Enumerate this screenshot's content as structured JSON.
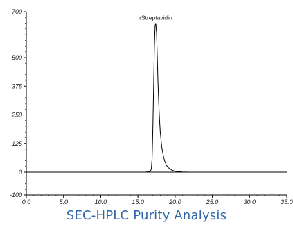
{
  "caption": "SEC-HPLC Purity Analysis",
  "colors": {
    "trace": "#000000",
    "caption": "#2e67a9"
  },
  "chart_data": {
    "type": "line",
    "title": "",
    "xlabel": "",
    "ylabel": "",
    "xlim": [
      0,
      35
    ],
    "ylim": [
      -100,
      700
    ],
    "x_ticks": [
      0,
      5,
      10,
      15,
      20,
      25,
      30,
      35
    ],
    "x_tick_labels": [
      "0.0",
      "5.0",
      "10.0",
      "15.0",
      "20.0",
      "25.0",
      "30.0",
      "35.0"
    ],
    "y_ticks": [
      -100,
      0,
      125,
      250,
      375,
      500,
      700
    ],
    "y_tick_labels": [
      "-100",
      "0",
      "125",
      "250",
      "375",
      "500",
      "700"
    ],
    "grid": false,
    "series": [
      {
        "x": [
          0,
          4,
          8,
          12,
          16,
          16.5,
          16.7,
          16.8,
          16.9,
          17.0,
          17.1,
          17.2,
          17.3,
          17.4,
          17.5,
          17.6,
          17.7,
          17.8,
          17.9,
          18.0,
          18.2,
          18.4,
          18.6,
          18.8,
          19.0,
          19.3,
          19.6,
          20.0,
          20.5,
          21.0,
          22.0,
          25,
          30,
          35
        ],
        "y": [
          0,
          0,
          0,
          0,
          0,
          2,
          6,
          15,
          60,
          180,
          360,
          540,
          640,
          650,
          610,
          500,
          390,
          300,
          230,
          175,
          110,
          72,
          48,
          32,
          22,
          14,
          8,
          4,
          2,
          1,
          0,
          0,
          0,
          0
        ]
      }
    ],
    "annotations": [
      {
        "text": "rStreptavidin",
        "x": 17.4,
        "y": 650
      }
    ]
  }
}
